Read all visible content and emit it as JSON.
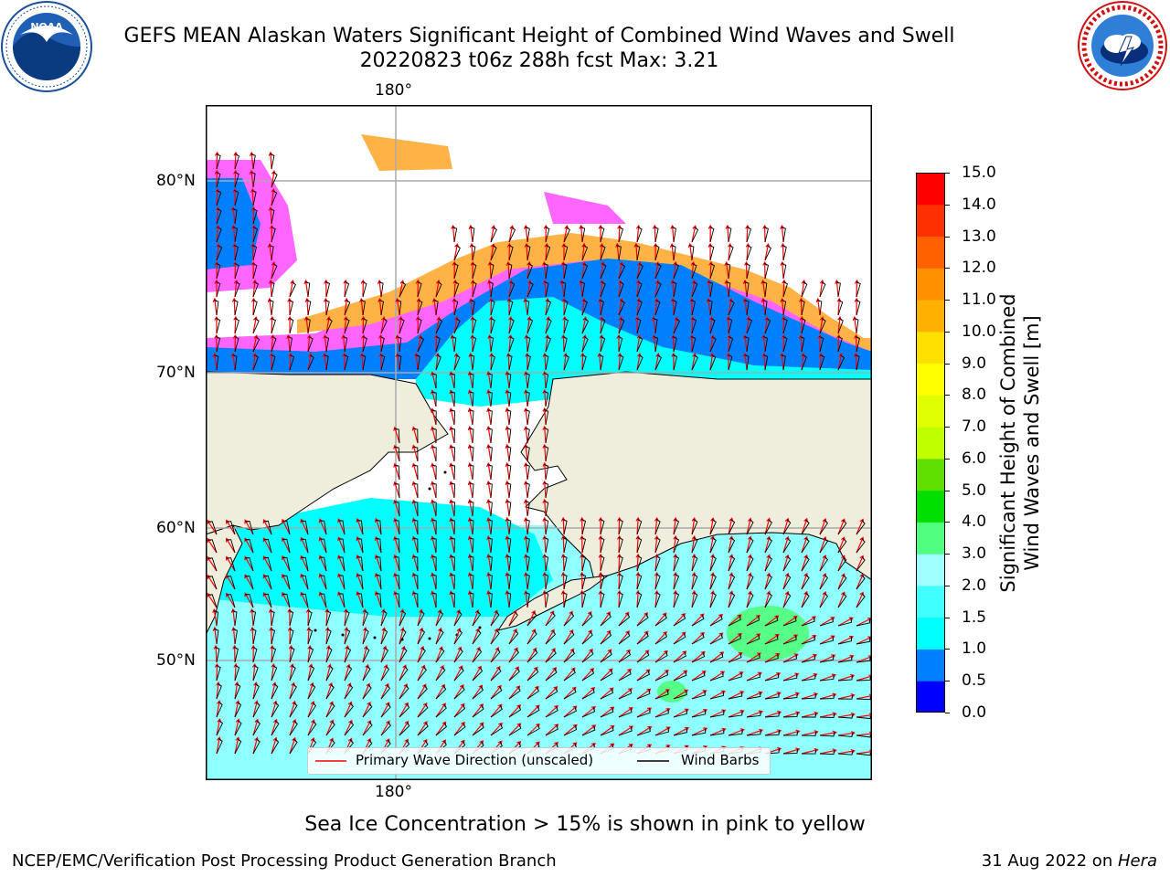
{
  "header": {
    "title": "GEFS MEAN Alaskan Waters Significant Height of Combined Wind Waves and Swell",
    "subtitle": "20220823 t06z 288h fcst   Max: 3.21"
  },
  "logos": {
    "left": {
      "text": "NOAA",
      "ring_text": "NATIONAL OCEANIC AND ATMOSPHERIC ADMINISTRATION · U.S. DEPARTMENT OF COMMERCE"
    },
    "right": {
      "ring_text": "NATIONAL WEATHER SERVICE"
    }
  },
  "map": {
    "longitude_labels": {
      "top": "180°",
      "bottom": "180°"
    },
    "latitude_labels": [
      "80°N",
      "70°N",
      "60°N",
      "50°N"
    ],
    "colors": {
      "land": "#efeddc",
      "ocean_low": "#8fffff",
      "ocean_mid": "#00ffff",
      "ice_pink": "#ff66ff",
      "ice_orange": "#ffb347",
      "ice_yellow": "#ffe066",
      "wave_arrow": "#ff0000",
      "wind_barb": "#000000",
      "grid": "#aaaaaa"
    },
    "legend": {
      "wave_label": "Primary Wave Direction (unscaled)",
      "wind_label": "Wind Barbs"
    }
  },
  "colorbar": {
    "label": "Significant Height of Combined\nWind Waves and Swell [m]",
    "ticks": [
      "0.0",
      "0.5",
      "1.0",
      "1.5",
      "2.0",
      "3.0",
      "4.0",
      "5.0",
      "6.0",
      "7.0",
      "8.0",
      "9.0",
      "10.0",
      "11.0",
      "12.0",
      "13.0",
      "14.0",
      "15.0"
    ],
    "colors": [
      "#0000ff",
      "#0080ff",
      "#00ffff",
      "#40ffff",
      "#a0ffff",
      "#50ff80",
      "#00e000",
      "#60e000",
      "#c0ff00",
      "#e0ff00",
      "#ffff00",
      "#ffe000",
      "#ffb000",
      "#ff9000",
      "#ff6000",
      "#ff3000",
      "#ff0000"
    ]
  },
  "caption": "Sea Ice Concentration > 15% is shown in pink to yellow",
  "footer": {
    "left": "NCEP/EMC/Verification Post Processing Product Generation Branch",
    "right_date": "31 Aug 2022 on ",
    "right_machine": "Hera"
  }
}
